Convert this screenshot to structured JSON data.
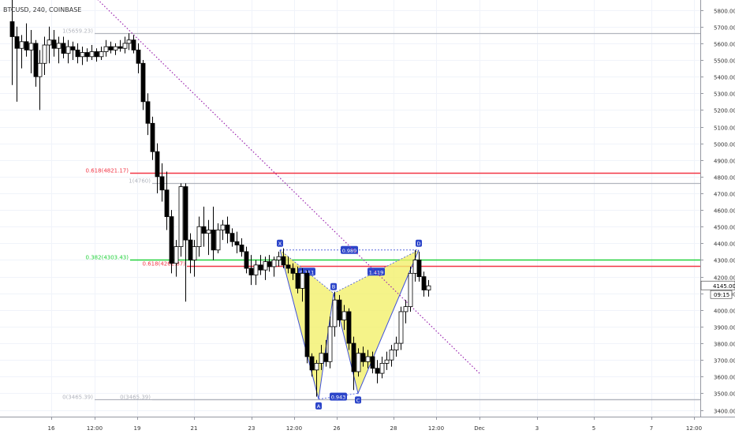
{
  "symbol": {
    "label": "BTCUSD, 240, COINBASE"
  },
  "chart_data": {
    "type": "candlestick",
    "title": "BTCUSD, 240, COINBASE",
    "ylim": [
      3360,
      5860
    ],
    "xlim": [
      0,
      888
    ],
    "y_ticks": [
      3400,
      3500,
      3600,
      3700,
      3800,
      3900,
      4000,
      4100,
      4200,
      4300,
      4400,
      4500,
      4600,
      4700,
      4800,
      4900,
      5000,
      5100,
      5200,
      5300,
      5400,
      5500,
      5600,
      5700,
      5800
    ],
    "x_ticks": [
      {
        "label": "16",
        "x": 65
      },
      {
        "label": "12:00",
        "x": 120
      },
      {
        "label": "19",
        "x": 174
      },
      {
        "label": "21",
        "x": 246
      },
      {
        "label": "23",
        "x": 319
      },
      {
        "label": "12:00",
        "x": 373
      },
      {
        "label": "26",
        "x": 427
      },
      {
        "label": "28",
        "x": 499
      },
      {
        "label": "12:00",
        "x": 553
      },
      {
        "label": "Dec",
        "x": 608
      },
      {
        "label": "3",
        "x": 681
      },
      {
        "label": "5",
        "x": 753
      },
      {
        "label": "7",
        "x": 826
      },
      {
        "label": "12:00",
        "x": 880
      }
    ],
    "candles": [
      {
        "x": 15,
        "o": 5730,
        "h": 5890,
        "l": 5350,
        "c": 5640
      },
      {
        "x": 21,
        "o": 5640,
        "h": 5700,
        "l": 5250,
        "c": 5570
      },
      {
        "x": 27,
        "o": 5570,
        "h": 5650,
        "l": 5450,
        "c": 5610
      },
      {
        "x": 33,
        "o": 5610,
        "h": 5720,
        "l": 5520,
        "c": 5560
      },
      {
        "x": 39,
        "o": 5560,
        "h": 5680,
        "l": 5420,
        "c": 5600
      },
      {
        "x": 45,
        "o": 5600,
        "h": 5620,
        "l": 5340,
        "c": 5400
      },
      {
        "x": 50,
        "o": 5400,
        "h": 5560,
        "l": 5200,
        "c": 5480
      },
      {
        "x": 56,
        "o": 5480,
        "h": 5640,
        "l": 5410,
        "c": 5590
      },
      {
        "x": 62,
        "o": 5590,
        "h": 5700,
        "l": 5480,
        "c": 5620
      },
      {
        "x": 68,
        "o": 5620,
        "h": 5680,
        "l": 5520,
        "c": 5570
      },
      {
        "x": 74,
        "o": 5570,
        "h": 5640,
        "l": 5480,
        "c": 5600
      },
      {
        "x": 80,
        "o": 5600,
        "h": 5640,
        "l": 5510,
        "c": 5540
      },
      {
        "x": 86,
        "o": 5540,
        "h": 5620,
        "l": 5480,
        "c": 5580
      },
      {
        "x": 92,
        "o": 5580,
        "h": 5610,
        "l": 5500,
        "c": 5560
      },
      {
        "x": 98,
        "o": 5560,
        "h": 5600,
        "l": 5480,
        "c": 5520
      },
      {
        "x": 104,
        "o": 5520,
        "h": 5580,
        "l": 5470,
        "c": 5545
      },
      {
        "x": 110,
        "o": 5545,
        "h": 5570,
        "l": 5490,
        "c": 5520
      },
      {
        "x": 116,
        "o": 5520,
        "h": 5590,
        "l": 5500,
        "c": 5550
      },
      {
        "x": 122,
        "o": 5550,
        "h": 5570,
        "l": 5490,
        "c": 5520
      },
      {
        "x": 128,
        "o": 5520,
        "h": 5580,
        "l": 5500,
        "c": 5550
      },
      {
        "x": 134,
        "o": 5550,
        "h": 5620,
        "l": 5520,
        "c": 5580
      },
      {
        "x": 140,
        "o": 5580,
        "h": 5610,
        "l": 5540,
        "c": 5560
      },
      {
        "x": 146,
        "o": 5560,
        "h": 5600,
        "l": 5530,
        "c": 5580
      },
      {
        "x": 152,
        "o": 5580,
        "h": 5620,
        "l": 5550,
        "c": 5570
      },
      {
        "x": 158,
        "o": 5570,
        "h": 5640,
        "l": 5540,
        "c": 5600
      },
      {
        "x": 163,
        "o": 5600,
        "h": 5660,
        "l": 5560,
        "c": 5620
      },
      {
        "x": 169,
        "o": 5620,
        "h": 5650,
        "l": 5540,
        "c": 5560
      },
      {
        "x": 175,
        "o": 5560,
        "h": 5600,
        "l": 5420,
        "c": 5480
      },
      {
        "x": 181,
        "o": 5480,
        "h": 5500,
        "l": 5200,
        "c": 5250
      },
      {
        "x": 187,
        "o": 5250,
        "h": 5300,
        "l": 5050,
        "c": 5120
      },
      {
        "x": 193,
        "o": 5120,
        "h": 5160,
        "l": 4900,
        "c": 4950
      },
      {
        "x": 199,
        "o": 4950,
        "h": 5000,
        "l": 4700,
        "c": 4800
      },
      {
        "x": 205,
        "o": 4800,
        "h": 4880,
        "l": 4650,
        "c": 4720
      },
      {
        "x": 211,
        "o": 4720,
        "h": 4830,
        "l": 4480,
        "c": 4560
      },
      {
        "x": 217,
        "o": 4560,
        "h": 4600,
        "l": 4220,
        "c": 4280
      },
      {
        "x": 223,
        "o": 4280,
        "h": 4420,
        "l": 4200,
        "c": 4380
      },
      {
        "x": 229,
        "o": 4380,
        "h": 4760,
        "l": 4320,
        "c": 4740
      },
      {
        "x": 235,
        "o": 4740,
        "h": 4760,
        "l": 4050,
        "c": 4420
      },
      {
        "x": 241,
        "o": 4420,
        "h": 4460,
        "l": 4220,
        "c": 4300
      },
      {
        "x": 246,
        "o": 4300,
        "h": 4420,
        "l": 4200,
        "c": 4380
      },
      {
        "x": 252,
        "o": 4380,
        "h": 4560,
        "l": 4320,
        "c": 4500
      },
      {
        "x": 258,
        "o": 4500,
        "h": 4620,
        "l": 4380,
        "c": 4460
      },
      {
        "x": 264,
        "o": 4460,
        "h": 4540,
        "l": 4330,
        "c": 4480
      },
      {
        "x": 270,
        "o": 4480,
        "h": 4620,
        "l": 4300,
        "c": 4360
      },
      {
        "x": 276,
        "o": 4360,
        "h": 4520,
        "l": 4340,
        "c": 4480
      },
      {
        "x": 282,
        "o": 4480,
        "h": 4540,
        "l": 4420,
        "c": 4510
      },
      {
        "x": 288,
        "o": 4510,
        "h": 4560,
        "l": 4400,
        "c": 4460
      },
      {
        "x": 294,
        "o": 4460,
        "h": 4490,
        "l": 4380,
        "c": 4410
      },
      {
        "x": 300,
        "o": 4410,
        "h": 4470,
        "l": 4340,
        "c": 4390
      },
      {
        "x": 306,
        "o": 4390,
        "h": 4430,
        "l": 4320,
        "c": 4350
      },
      {
        "x": 312,
        "o": 4350,
        "h": 4380,
        "l": 4220,
        "c": 4250
      },
      {
        "x": 318,
        "o": 4250,
        "h": 4330,
        "l": 4150,
        "c": 4210
      },
      {
        "x": 324,
        "o": 4210,
        "h": 4300,
        "l": 4150,
        "c": 4270
      },
      {
        "x": 330,
        "o": 4270,
        "h": 4330,
        "l": 4210,
        "c": 4240
      },
      {
        "x": 336,
        "o": 4240,
        "h": 4320,
        "l": 4180,
        "c": 4290
      },
      {
        "x": 341,
        "o": 4290,
        "h": 4330,
        "l": 4230,
        "c": 4260
      },
      {
        "x": 347,
        "o": 4260,
        "h": 4320,
        "l": 4200,
        "c": 4300
      },
      {
        "x": 353,
        "o": 4300,
        "h": 4350,
        "l": 4260,
        "c": 4320
      },
      {
        "x": 359,
        "o": 4320,
        "h": 4370,
        "l": 4250,
        "c": 4270
      },
      {
        "x": 365,
        "o": 4270,
        "h": 4320,
        "l": 4220,
        "c": 4250
      },
      {
        "x": 371,
        "o": 4250,
        "h": 4280,
        "l": 4180,
        "c": 4220
      },
      {
        "x": 377,
        "o": 4220,
        "h": 4260,
        "l": 4100,
        "c": 4130
      },
      {
        "x": 383,
        "o": 4130,
        "h": 4250,
        "l": 4050,
        "c": 4220
      },
      {
        "x": 389,
        "o": 4220,
        "h": 4240,
        "l": 3680,
        "c": 3720
      },
      {
        "x": 395,
        "o": 3720,
        "h": 3740,
        "l": 3600,
        "c": 3640
      },
      {
        "x": 401,
        "o": 3640,
        "h": 3700,
        "l": 3480,
        "c": 3680
      },
      {
        "x": 407,
        "o": 3680,
        "h": 3790,
        "l": 3640,
        "c": 3740
      },
      {
        "x": 413,
        "o": 3740,
        "h": 3820,
        "l": 3660,
        "c": 3690
      },
      {
        "x": 418,
        "o": 3690,
        "h": 3960,
        "l": 3650,
        "c": 3900
      },
      {
        "x": 424,
        "o": 3900,
        "h": 4110,
        "l": 3840,
        "c": 4060
      },
      {
        "x": 430,
        "o": 4060,
        "h": 4090,
        "l": 3900,
        "c": 3940
      },
      {
        "x": 436,
        "o": 3940,
        "h": 4030,
        "l": 3880,
        "c": 3990
      },
      {
        "x": 442,
        "o": 3990,
        "h": 4010,
        "l": 3760,
        "c": 3800
      },
      {
        "x": 448,
        "o": 3800,
        "h": 3840,
        "l": 3520,
        "c": 3630
      },
      {
        "x": 454,
        "o": 3630,
        "h": 3770,
        "l": 3600,
        "c": 3740
      },
      {
        "x": 460,
        "o": 3740,
        "h": 3780,
        "l": 3660,
        "c": 3690
      },
      {
        "x": 466,
        "o": 3690,
        "h": 3760,
        "l": 3650,
        "c": 3720
      },
      {
        "x": 472,
        "o": 3720,
        "h": 3750,
        "l": 3620,
        "c": 3650
      },
      {
        "x": 478,
        "o": 3650,
        "h": 3700,
        "l": 3560,
        "c": 3620
      },
      {
        "x": 484,
        "o": 3620,
        "h": 3720,
        "l": 3590,
        "c": 3680
      },
      {
        "x": 490,
        "o": 3680,
        "h": 3750,
        "l": 3640,
        "c": 3700
      },
      {
        "x": 496,
        "o": 3700,
        "h": 3790,
        "l": 3660,
        "c": 3760
      },
      {
        "x": 502,
        "o": 3760,
        "h": 3840,
        "l": 3720,
        "c": 3800
      },
      {
        "x": 508,
        "o": 3800,
        "h": 4020,
        "l": 3760,
        "c": 3990
      },
      {
        "x": 514,
        "o": 3990,
        "h": 4060,
        "l": 3920,
        "c": 4020
      },
      {
        "x": 520,
        "o": 4020,
        "h": 4260,
        "l": 3990,
        "c": 4220
      },
      {
        "x": 526,
        "o": 4220,
        "h": 4360,
        "l": 4170,
        "c": 4300
      },
      {
        "x": 531,
        "o": 4300,
        "h": 4350,
        "l": 4170,
        "c": 4200
      },
      {
        "x": 537,
        "o": 4200,
        "h": 4230,
        "l": 4080,
        "c": 4120
      },
      {
        "x": 543,
        "o": 4120,
        "h": 4180,
        "l": 4080,
        "c": 4145
      }
    ],
    "hlines": [
      {
        "label": "1(5659.23)",
        "value": 5659,
        "color": "#b2b5be",
        "x_start": 120
      },
      {
        "label": "0.618(4821.17)",
        "value": 4821,
        "color": "#f23645",
        "x_start": 165
      },
      {
        "label": "1(4760)",
        "value": 4760,
        "color": "#b2b5be",
        "x_start": 193
      },
      {
        "label": "0.382(4303.43)",
        "value": 4303,
        "color": "#22d13b",
        "x_start": 165
      },
      {
        "label": "0.618(4262.87)",
        "value": 4263,
        "color": "#f23645",
        "x_start": 237
      },
      {
        "label": "0(3465.39)",
        "value": 3465,
        "color": "#b2b5be",
        "x_start": 120
      },
      {
        "label": "0(3465.39)",
        "value": 3465,
        "color": "#b2b5be",
        "x_start": 193
      }
    ],
    "trendline": {
      "x1": 118,
      "y1": 5890,
      "x2": 608,
      "y2": 3620,
      "color": "#9c27b0"
    },
    "harmonic": {
      "points": [
        {
          "label": "X",
          "x": 355,
          "y": 4360
        },
        {
          "label": "A",
          "x": 404,
          "y": 3465
        },
        {
          "label": "B",
          "x": 423,
          "y": 4100
        },
        {
          "label": "C",
          "x": 454,
          "y": 3500
        },
        {
          "label": "D",
          "x": 531,
          "y": 4360
        }
      ],
      "ratios": [
        {
          "label": "0.711",
          "x": 389,
          "y": 4230
        },
        {
          "label": "0.943",
          "x": 429,
          "y": 3480
        },
        {
          "label": "1.419",
          "x": 477,
          "y": 4230
        },
        {
          "label": "0.989",
          "x": 443,
          "y": 4360
        }
      ],
      "fill": "#f3f06b",
      "line": "#3f51d8"
    },
    "last_price": {
      "value": "4145.00",
      "countdown": "09:15",
      "y": 4145
    }
  }
}
